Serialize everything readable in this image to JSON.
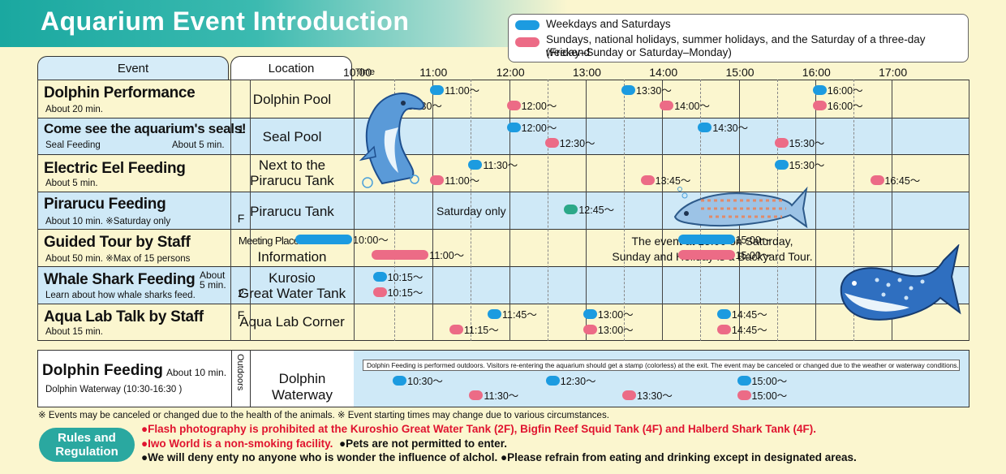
{
  "title": "Aquarium Event Introduction",
  "legend": {
    "weekday": "Weekdays and Saturdays",
    "holiday_line1": "Sundays, national holidays, summer holidays, and the Saturday of a three-day weekend",
    "holiday_line2": "(Friday–Sunday or Saturday–Monday)",
    "colors": {
      "weekday": "#1c9be0",
      "holiday": "#ec6b86",
      "saturday_only": "#2ba888"
    }
  },
  "headers": {
    "event": "Event",
    "location": "Location",
    "time": "Time",
    "times": [
      "10:00",
      "11:00",
      "12:00",
      "13:00",
      "14:00",
      "15:00",
      "16:00",
      "17:00"
    ]
  },
  "events": [
    {
      "name": "Dolphin Performance",
      "sub": "About  20 min.",
      "location": "Dolphin Pool",
      "floor": ""
    },
    {
      "name": "Come see the aquarium's seals!",
      "sub": "Seal Feeding",
      "sub2": "About  5 min.",
      "location": "Seal Pool",
      "floor": "1"
    },
    {
      "name": "Electric Eel Feeding",
      "sub": "About  5 min.",
      "location_l1": "Next to the",
      "location_l2": "Pirarucu Tank",
      "floor": ""
    },
    {
      "name": "Pirarucu Feeding",
      "sub": "About 10 min.  ※Saturday only",
      "location": "Pirarucu Tank",
      "floor": "F"
    },
    {
      "name": "Guided Tour by Staff",
      "sub": "About 50 min.  ※Max of 15 persons",
      "location_l1": "Meeting Place at General",
      "location_l2": "Information",
      "floor": ""
    },
    {
      "name": "Whale Shark Feeding",
      "dur_l1": "About",
      "dur_l2": "5 min.",
      "sub": "Learn about how whale sharks feed.",
      "location_l1": "Kurosio",
      "location_l2": "Great Water Tank",
      "floor": "2"
    },
    {
      "name": "Aqua Lab Talk by  Staff",
      "sub": "About 15 min.",
      "location": "Aqua Lab Corner",
      "floor": "F"
    }
  ],
  "schedule": {
    "dolphin_perf": {
      "w": [
        "11:00～",
        "13:30～",
        "16:00～"
      ],
      "h": [
        "10:30～",
        "12:00～",
        "14:00～",
        "16:00～"
      ]
    },
    "seal": {
      "w": [
        "12:00～",
        "14:30～"
      ],
      "h": [
        "12:30～",
        "15:30～"
      ]
    },
    "eel": {
      "w": [
        "11:30～",
        "15:30～"
      ],
      "h": [
        "11:00～",
        "13:45～",
        "16:45～"
      ]
    },
    "pirarucu": {
      "label": "Saturday only",
      "s": [
        "12:45～"
      ]
    },
    "tour": {
      "w": [
        "10:00～",
        "15:00～"
      ],
      "h": [
        "11:00～",
        "15:00～"
      ],
      "note_l1": "The event at 15:00 on Saturday,",
      "note_l2": "Sunday and Holiday is a Backyard Tour."
    },
    "whale": {
      "w": [
        "10:15～"
      ],
      "h": [
        "10:15～"
      ]
    },
    "aqualab": {
      "w": [
        "11:45～",
        "13:00～",
        "14:45～"
      ],
      "h": [
        "11:15～",
        "13:00～",
        "14:45～"
      ]
    }
  },
  "dolphin_feeding": {
    "name": "Dolphin Feeding",
    "dur": "About 10 min.",
    "sub": "Dolphin Waterway  (10:30-16:30 )",
    "outdoors": "Outdoors",
    "location": "Dolphin Waterway",
    "note": "Dolphin Feeding is performed outdoors. Visitors re-entering the aquarium should get a stamp (colorless) at the exit. The event may be canceled or changed due to the weather or waterway conditions.",
    "w": [
      "10:30～",
      "12:30～",
      "15:00～"
    ],
    "h": [
      "11:30～",
      "13:30～",
      "15:00～"
    ]
  },
  "notes": "※ Events may be canceled or changed due to the health of the animals. ※ Event starting times may change due to various circumstances.",
  "rules": {
    "badge_l1": "Rules and",
    "badge_l2": "Regulation",
    "r1": "●Flash photography is prohibited at the Kuroshio Great Water Tank (2F), Bigfin Reef Squid Tank (4F) and Halberd Shark Tank (4F).",
    "r2a": "●Iwo World is a non-smoking facility.",
    "r2b": "●Pets are not permitted to enter.",
    "r3": "●We will deny enty no anyone who is wonder the influence of alchol. ●Please refrain from eating and drinking except in designated areas."
  }
}
